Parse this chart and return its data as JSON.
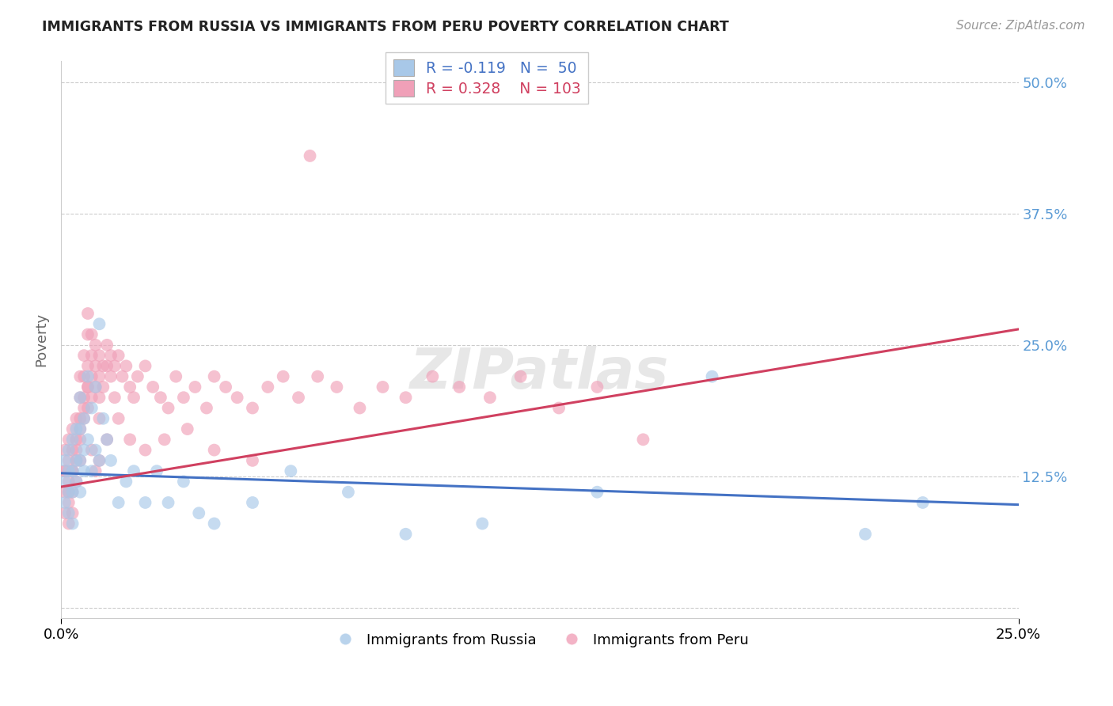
{
  "title": "IMMIGRANTS FROM RUSSIA VS IMMIGRANTS FROM PERU POVERTY CORRELATION CHART",
  "source": "Source: ZipAtlas.com",
  "ylabel": "Poverty",
  "xlim": [
    0.0,
    0.25
  ],
  "ylim": [
    -0.01,
    0.52
  ],
  "yticks": [
    0.0,
    0.125,
    0.25,
    0.375,
    0.5
  ],
  "ytick_labels": [
    "",
    "12.5%",
    "25.0%",
    "37.5%",
    "50.0%"
  ],
  "xticks": [
    0.0,
    0.25
  ],
  "xtick_labels": [
    "0.0%",
    "25.0%"
  ],
  "russia_color": "#a8c8e8",
  "peru_color": "#f0a0b8",
  "russia_R": -0.119,
  "russia_N": 50,
  "peru_R": 0.328,
  "peru_N": 103,
  "russia_line_color": "#4472c4",
  "peru_line_color": "#d04060",
  "legend_label_russia": "Immigrants from Russia",
  "legend_label_peru": "Immigrants from Peru",
  "russia_line_x0": 0.0,
  "russia_line_y0": 0.128,
  "russia_line_x1": 0.25,
  "russia_line_y1": 0.098,
  "peru_line_x0": 0.0,
  "peru_line_y0": 0.115,
  "peru_line_x1": 0.25,
  "peru_line_y1": 0.265,
  "russia_x": [
    0.001,
    0.001,
    0.001,
    0.002,
    0.002,
    0.002,
    0.002,
    0.003,
    0.003,
    0.003,
    0.003,
    0.004,
    0.004,
    0.004,
    0.005,
    0.005,
    0.005,
    0.005,
    0.006,
    0.006,
    0.006,
    0.007,
    0.007,
    0.008,
    0.008,
    0.009,
    0.009,
    0.01,
    0.01,
    0.011,
    0.012,
    0.013,
    0.015,
    0.017,
    0.019,
    0.022,
    0.025,
    0.028,
    0.032,
    0.036,
    0.04,
    0.05,
    0.06,
    0.075,
    0.09,
    0.11,
    0.14,
    0.17,
    0.21,
    0.225
  ],
  "russia_y": [
    0.14,
    0.12,
    0.1,
    0.15,
    0.13,
    0.11,
    0.09,
    0.16,
    0.13,
    0.11,
    0.08,
    0.17,
    0.14,
    0.12,
    0.2,
    0.17,
    0.14,
    0.11,
    0.18,
    0.15,
    0.13,
    0.22,
    0.16,
    0.19,
    0.13,
    0.21,
    0.15,
    0.27,
    0.14,
    0.18,
    0.16,
    0.14,
    0.1,
    0.12,
    0.13,
    0.1,
    0.13,
    0.1,
    0.12,
    0.09,
    0.08,
    0.1,
    0.13,
    0.11,
    0.07,
    0.08,
    0.11,
    0.22,
    0.07,
    0.1
  ],
  "peru_x": [
    0.001,
    0.001,
    0.001,
    0.001,
    0.002,
    0.002,
    0.002,
    0.002,
    0.002,
    0.003,
    0.003,
    0.003,
    0.003,
    0.003,
    0.004,
    0.004,
    0.004,
    0.004,
    0.005,
    0.005,
    0.005,
    0.005,
    0.005,
    0.006,
    0.006,
    0.006,
    0.006,
    0.007,
    0.007,
    0.007,
    0.007,
    0.007,
    0.008,
    0.008,
    0.008,
    0.008,
    0.009,
    0.009,
    0.009,
    0.01,
    0.01,
    0.01,
    0.01,
    0.011,
    0.011,
    0.012,
    0.012,
    0.013,
    0.013,
    0.014,
    0.014,
    0.015,
    0.016,
    0.017,
    0.018,
    0.019,
    0.02,
    0.022,
    0.024,
    0.026,
    0.028,
    0.03,
    0.032,
    0.035,
    0.038,
    0.04,
    0.043,
    0.046,
    0.05,
    0.054,
    0.058,
    0.062,
    0.067,
    0.072,
    0.078,
    0.084,
    0.09,
    0.097,
    0.104,
    0.112,
    0.12,
    0.13,
    0.14,
    0.152,
    0.001,
    0.002,
    0.003,
    0.004,
    0.005,
    0.006,
    0.007,
    0.008,
    0.009,
    0.01,
    0.012,
    0.015,
    0.018,
    0.022,
    0.027,
    0.033,
    0.04,
    0.05,
    0.065
  ],
  "peru_y": [
    0.15,
    0.13,
    0.11,
    0.09,
    0.16,
    0.14,
    0.12,
    0.1,
    0.08,
    0.17,
    0.15,
    0.13,
    0.11,
    0.09,
    0.18,
    0.16,
    0.14,
    0.12,
    0.22,
    0.2,
    0.18,
    0.16,
    0.14,
    0.24,
    0.22,
    0.2,
    0.18,
    0.28,
    0.26,
    0.23,
    0.21,
    0.19,
    0.26,
    0.24,
    0.22,
    0.2,
    0.25,
    0.23,
    0.21,
    0.24,
    0.22,
    0.2,
    0.18,
    0.23,
    0.21,
    0.25,
    0.23,
    0.24,
    0.22,
    0.23,
    0.2,
    0.24,
    0.22,
    0.23,
    0.21,
    0.2,
    0.22,
    0.23,
    0.21,
    0.2,
    0.19,
    0.22,
    0.2,
    0.21,
    0.19,
    0.22,
    0.21,
    0.2,
    0.19,
    0.21,
    0.22,
    0.2,
    0.22,
    0.21,
    0.19,
    0.21,
    0.2,
    0.22,
    0.21,
    0.2,
    0.22,
    0.19,
    0.21,
    0.16,
    0.13,
    0.11,
    0.13,
    0.15,
    0.17,
    0.19,
    0.21,
    0.15,
    0.13,
    0.14,
    0.16,
    0.18,
    0.16,
    0.15,
    0.16,
    0.17,
    0.15,
    0.14,
    0.43
  ]
}
